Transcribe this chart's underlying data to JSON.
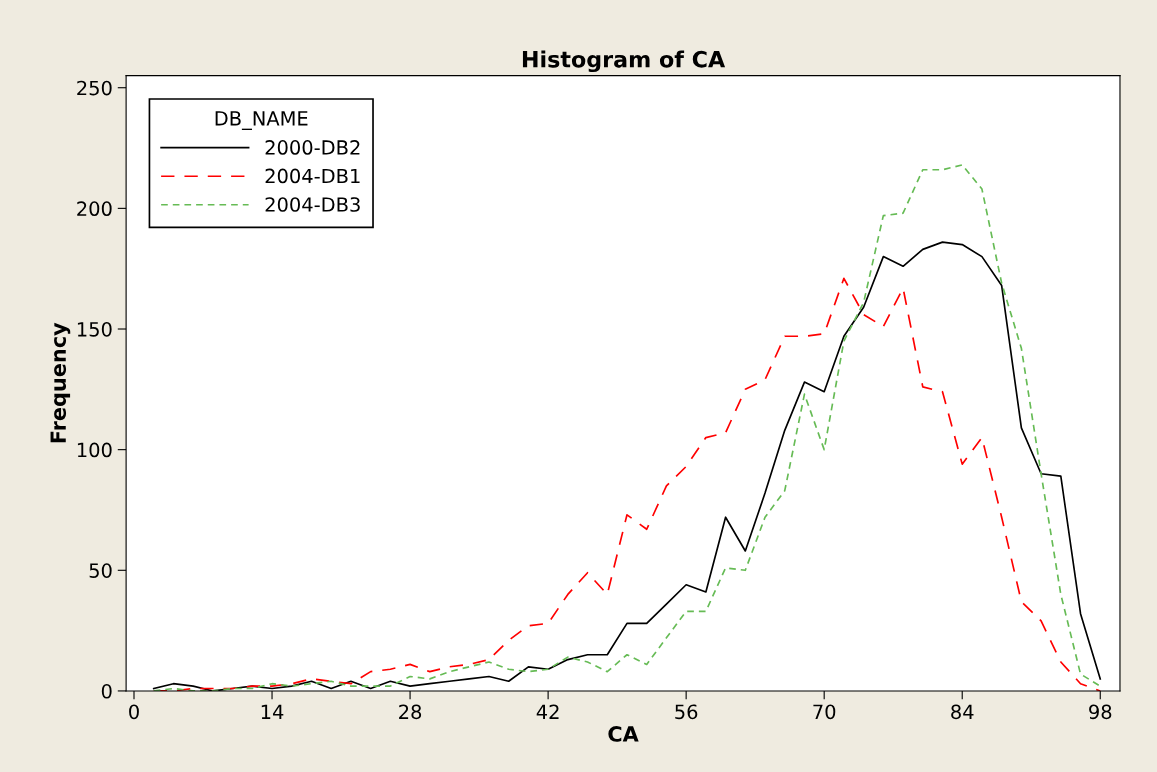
{
  "chart_data": {
    "type": "line",
    "title": "Histogram of CA",
    "xlabel": "CA",
    "ylabel": "Frequency",
    "legend_title": "DB_NAME",
    "legend": "top left",
    "grid": false,
    "marker": "none",
    "x": [
      2,
      4,
      6,
      8,
      10,
      12,
      14,
      16,
      18,
      20,
      22,
      24,
      26,
      28,
      30,
      32,
      34,
      36,
      38,
      40,
      42,
      44,
      46,
      48,
      50,
      52,
      54,
      56,
      58,
      60,
      62,
      64,
      66,
      68,
      70,
      72,
      74,
      76,
      78,
      80,
      82,
      84,
      86,
      88,
      90,
      92,
      94,
      96,
      98
    ],
    "series": [
      {
        "name": "2000-DB2",
        "color": "#000000",
        "line_style": "solid",
        "values": [
          1,
          3,
          2,
          0,
          1,
          2,
          1,
          2,
          4,
          1,
          4,
          1,
          4,
          2,
          3,
          4,
          5,
          6,
          4,
          10,
          9,
          13,
          15,
          15,
          28,
          28,
          36,
          44,
          41,
          72,
          58,
          82,
          108,
          128,
          124,
          147,
          159,
          180,
          176,
          183,
          186,
          185,
          180,
          168,
          109,
          90,
          89,
          32,
          5
        ]
      },
      {
        "name": "2004-DB1",
        "color": "#ff0000",
        "line_style": "dashed",
        "values": [
          0,
          0,
          1,
          1,
          1,
          2,
          2,
          3,
          5,
          4,
          3,
          8,
          9,
          11,
          8,
          10,
          11,
          13,
          21,
          27,
          28,
          40,
          49,
          40,
          73,
          67,
          85,
          93,
          105,
          107,
          125,
          129,
          147,
          147,
          148,
          171,
          156,
          151,
          167,
          126,
          124,
          94,
          105,
          72,
          37,
          29,
          12,
          3,
          0
        ]
      },
      {
        "name": "2004-DB3",
        "color": "#66bb55",
        "line_style": "dotted",
        "values": [
          0,
          1,
          0,
          0,
          1,
          1,
          3,
          2,
          3,
          4,
          2,
          2,
          2,
          6,
          5,
          8,
          10,
          12,
          9,
          8,
          9,
          14,
          12,
          8,
          15,
          11,
          22,
          33,
          33,
          51,
          50,
          72,
          83,
          123,
          100,
          145,
          161,
          197,
          198,
          216,
          216,
          218,
          208,
          169,
          142,
          90,
          40,
          7,
          2
        ]
      }
    ],
    "xlim": [
      -0.8,
      100
    ],
    "xticks": [
      0,
      14,
      28,
      42,
      56,
      70,
      84,
      98
    ],
    "ylim": [
      0,
      255
    ],
    "yticks": [
      0,
      50,
      100,
      150,
      200,
      250
    ]
  }
}
